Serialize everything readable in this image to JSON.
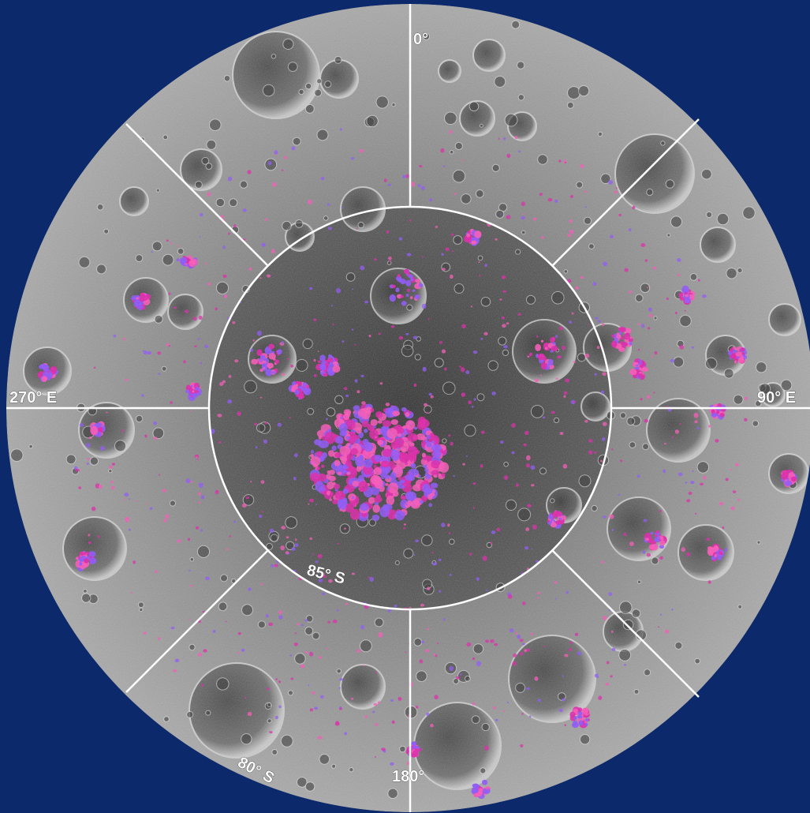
{
  "map": {
    "colors": {
      "background": "#0c2a6b",
      "surface_light": "#a9a9a9",
      "surface_mid": "#7e7e7e",
      "surface_dark": "#4a4a4a",
      "gridline": "#ffffff",
      "ice_magenta": "#e21aa8",
      "ice_pink": "#ff4fb8",
      "ice_violet": "#8b4dff",
      "label_text": "#ffffff"
    },
    "labels": {
      "lon_0": "0°",
      "lon_90": "90° E",
      "lon_180": "180°",
      "lon_270": "270° E",
      "lat_85": "85° S",
      "lat_80": "80° S"
    }
  }
}
